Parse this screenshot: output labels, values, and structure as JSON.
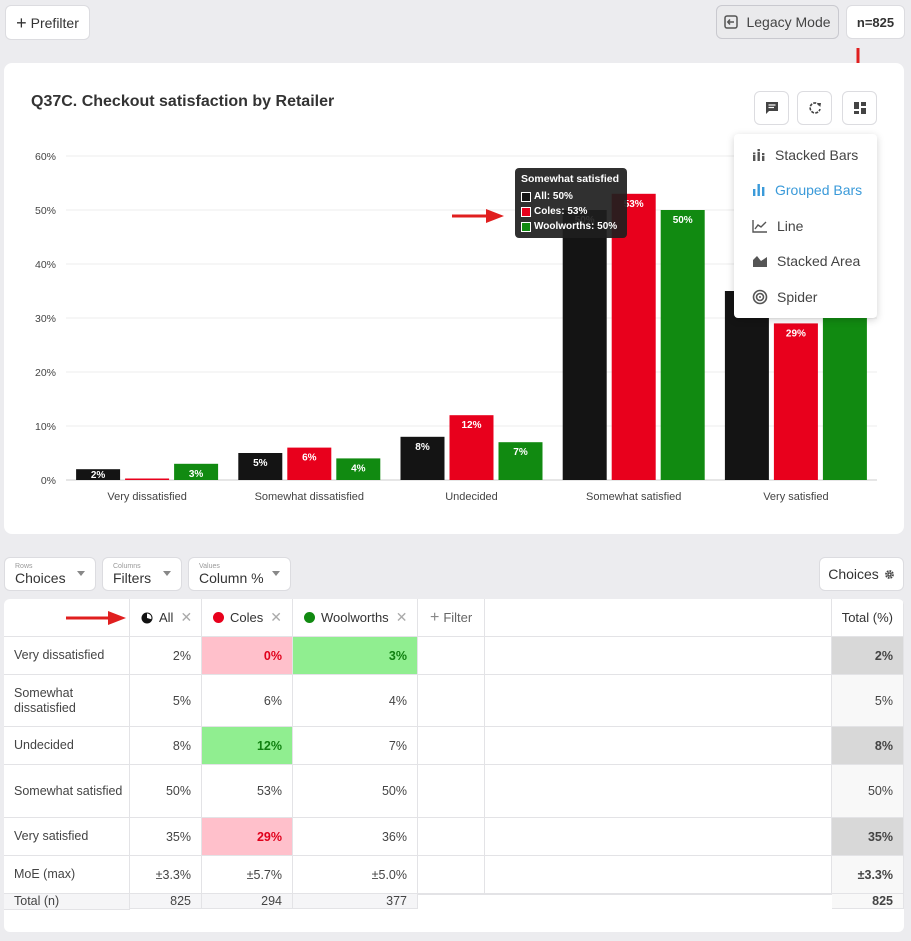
{
  "toolbar": {
    "prefilter": "Prefilter",
    "legacy_mode": "Legacy Mode",
    "sample_size": "n=825"
  },
  "chart": {
    "title": "Q37C. Checkout satisfaction by Retailer",
    "icons": [
      "comment-icon",
      "refresh-icon",
      "chart-type-icon"
    ]
  },
  "chart_data": {
    "type": "bar",
    "categories": [
      "Very dissatisfied",
      "Somewhat dissatisfied",
      "Undecided",
      "Somewhat satisfied",
      "Very satisfied"
    ],
    "series": [
      {
        "name": "All",
        "color": "#141414",
        "values": [
          2,
          5,
          8,
          50,
          35
        ]
      },
      {
        "name": "Coles",
        "color": "#e8001c",
        "values": [
          0,
          6,
          12,
          53,
          29
        ]
      },
      {
        "name": "Woolworths",
        "color": "#118a11",
        "values": [
          3,
          4,
          7,
          50,
          36
        ]
      }
    ],
    "ylim": [
      0,
      60
    ],
    "yticks": [
      "0%",
      "10%",
      "20%",
      "30%",
      "40%",
      "50%",
      "60%"
    ],
    "grid": true
  },
  "tooltip": {
    "title": "Somewhat satisfied",
    "rows": [
      "All: 50%",
      "Coles: 53%",
      "Woolworths: 50%"
    ]
  },
  "chart_type_menu": [
    {
      "label": "Stacked Bars",
      "icon": "stacked-bars-icon",
      "active": false
    },
    {
      "label": "Grouped Bars",
      "icon": "grouped-bars-icon",
      "active": true
    },
    {
      "label": "Line",
      "icon": "line-chart-icon",
      "active": false
    },
    {
      "label": "Stacked Area",
      "icon": "stacked-area-icon",
      "active": false
    },
    {
      "label": "Spider",
      "icon": "spider-chart-icon",
      "active": false
    }
  ],
  "controls": {
    "rows": {
      "caption": "Rows",
      "value": "Choices"
    },
    "columns": {
      "caption": "Columns",
      "value": "Filters"
    },
    "values": {
      "caption": "Values",
      "value": "Column %"
    },
    "choices_button": "Choices"
  },
  "table": {
    "headers": {
      "all": "All",
      "coles": "Coles",
      "woolworths": "Woolworths",
      "filter": "Filter",
      "total": "Total (%)"
    },
    "colors": {
      "coles": "#e8001c",
      "woolworths": "#118a11"
    },
    "rows": [
      {
        "label": "Very dissatisfied",
        "all": "2%",
        "coles": "0%",
        "woolworths": "3%",
        "total": "2%"
      },
      {
        "label": "Somewhat dissatisfied",
        "all": "5%",
        "coles": "6%",
        "woolworths": "4%",
        "total": "5%"
      },
      {
        "label": "Undecided",
        "all": "8%",
        "coles": "12%",
        "woolworths": "7%",
        "total": "8%"
      },
      {
        "label": "Somewhat satisfied",
        "all": "50%",
        "coles": "53%",
        "woolworths": "50%",
        "total": "50%"
      },
      {
        "label": "Very satisfied",
        "all": "35%",
        "coles": "29%",
        "woolworths": "36%",
        "total": "35%"
      },
      {
        "label": "MoE (max)",
        "all": "±3.3%",
        "coles": "±5.7%",
        "woolworths": "±5.0%",
        "total": "±3.3%"
      },
      {
        "label": "Total (n)",
        "all": "825",
        "coles": "294",
        "woolworths": "377",
        "total": "825"
      }
    ]
  }
}
